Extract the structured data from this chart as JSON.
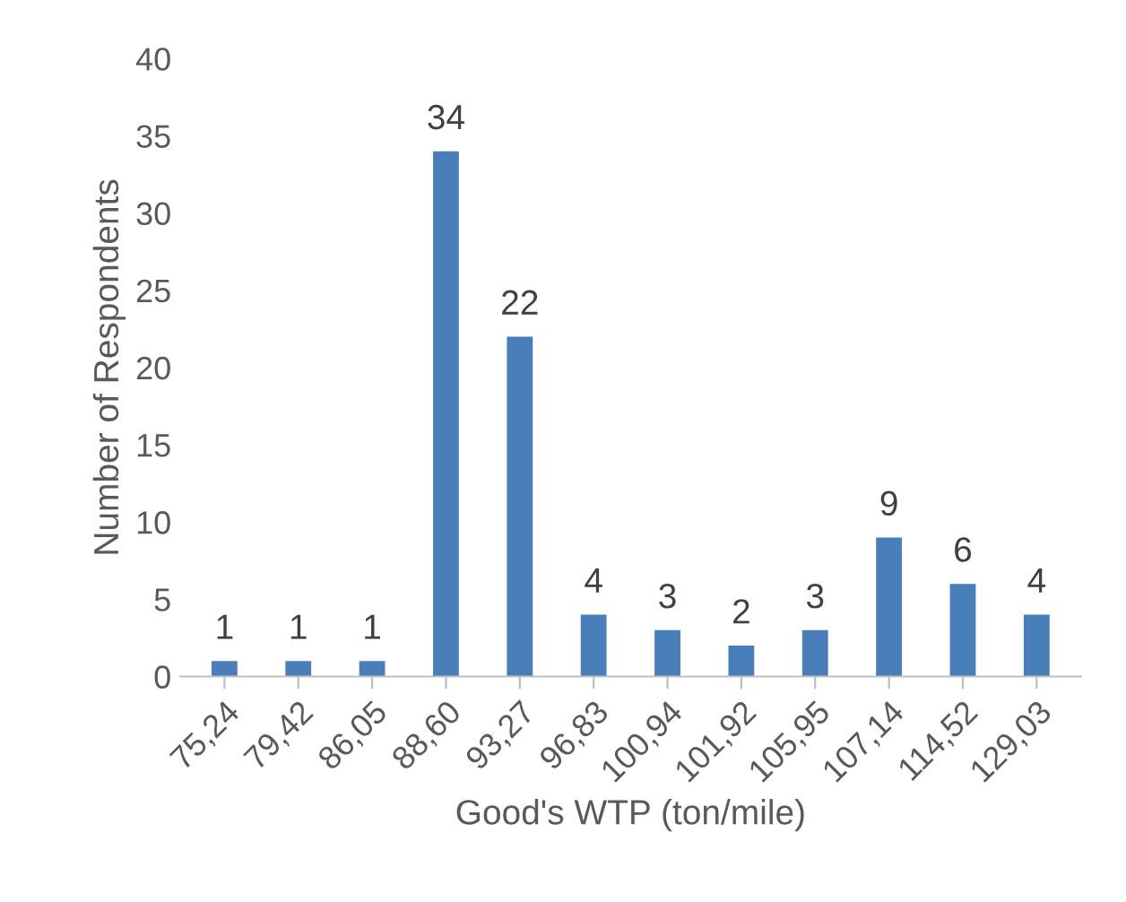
{
  "chart_data": {
    "type": "bar",
    "xlabel": "Good's WTP (ton/mile)",
    "ylabel": "Number of Respondents",
    "categories": [
      "75,24",
      "79,42",
      "86,05",
      "88,60",
      "93,27",
      "96,83",
      "100,94",
      "101,92",
      "105,95",
      "107,14",
      "114,52",
      "129,03"
    ],
    "values": [
      1,
      1,
      1,
      34,
      22,
      4,
      3,
      2,
      3,
      9,
      6,
      4
    ],
    "color": "#4a7ebb",
    "ylim": [
      0,
      40
    ],
    "yticks": [
      0,
      5,
      10,
      15,
      20,
      25,
      30,
      35,
      40
    ],
    "grid": false,
    "legend": false,
    "data_labels": true
  }
}
